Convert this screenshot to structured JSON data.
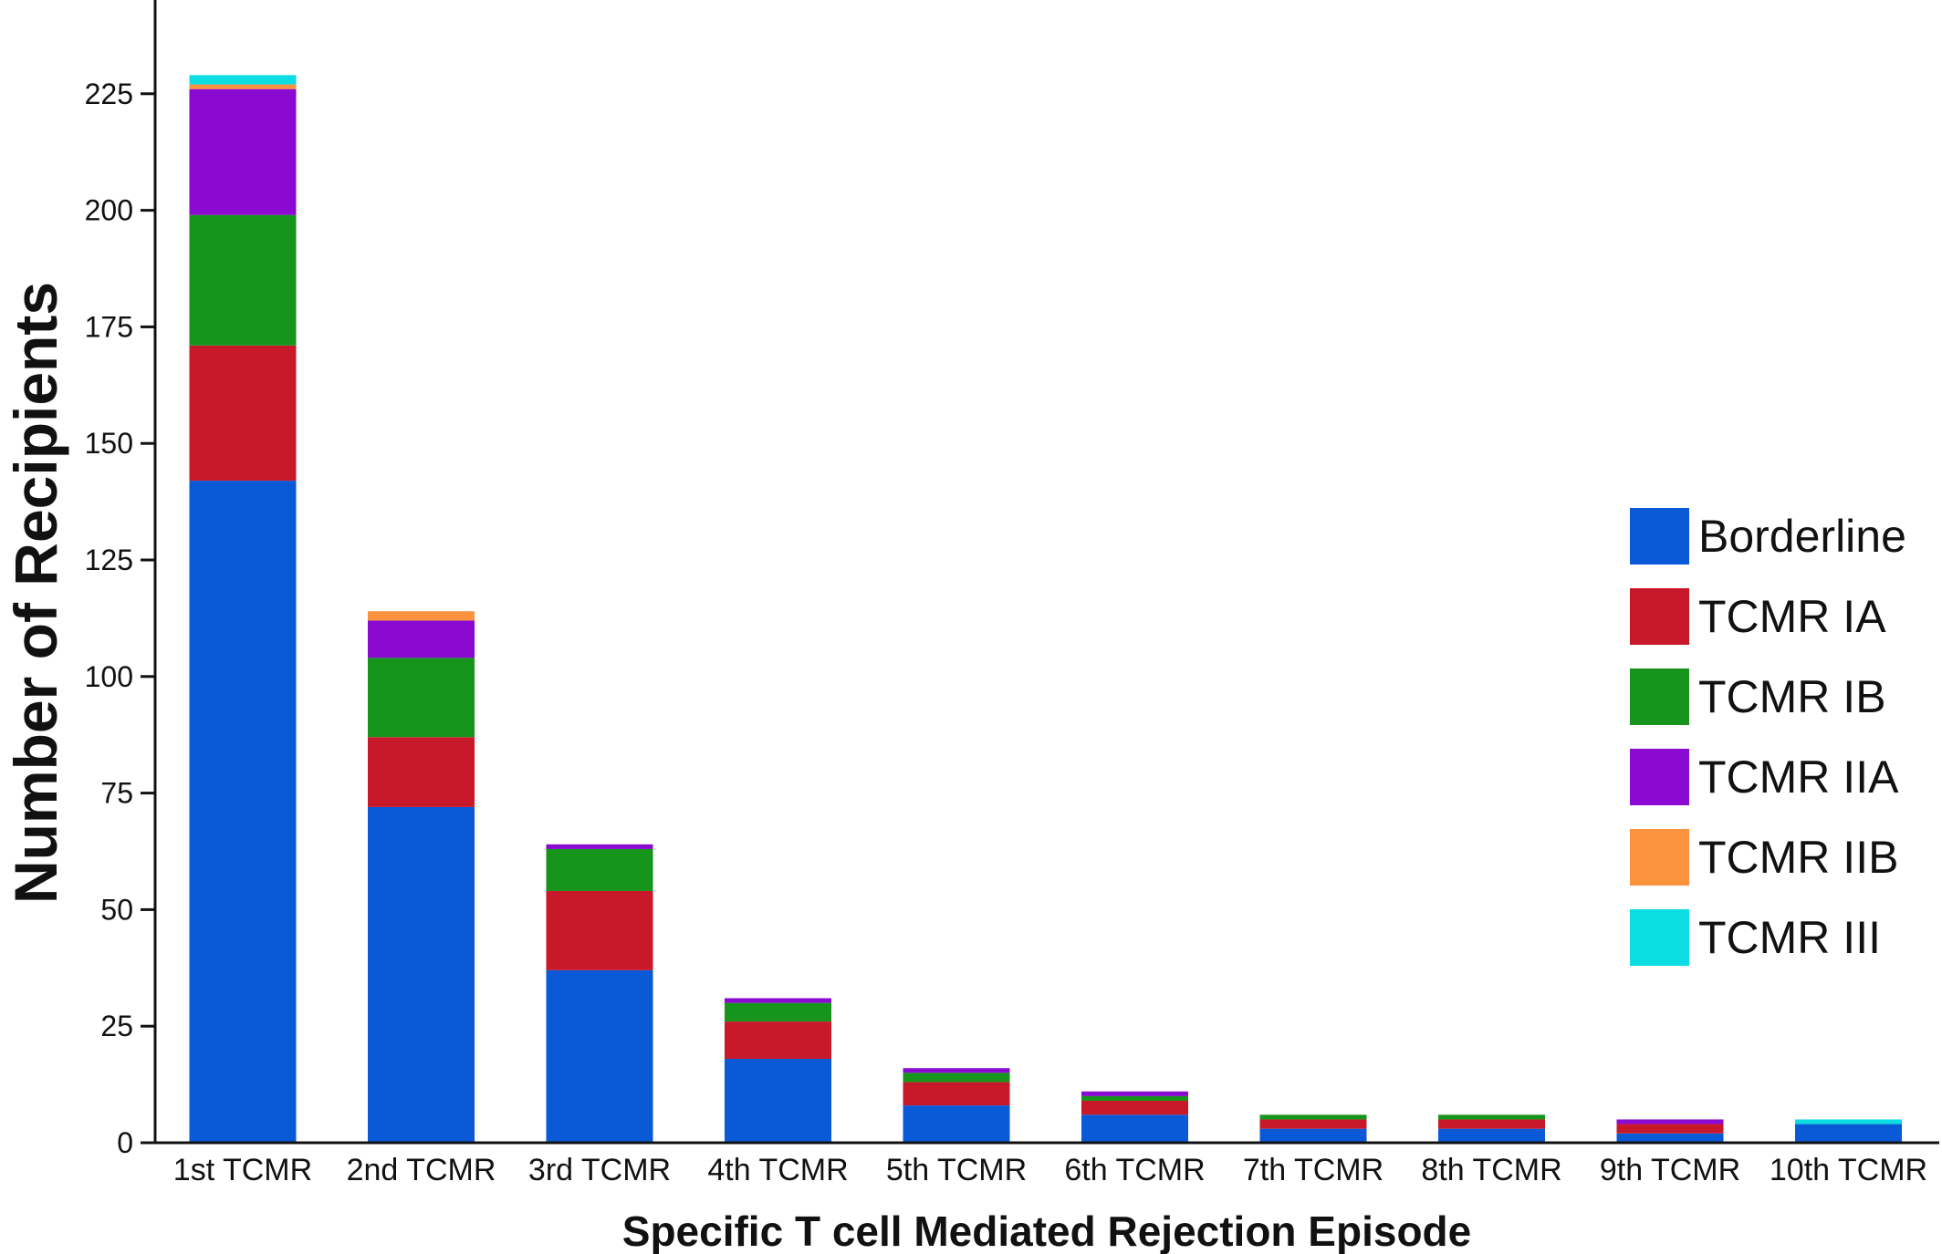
{
  "chart_data": {
    "type": "bar",
    "stacked": true,
    "categories": [
      "1st TCMR",
      "2nd TCMR",
      "3rd TCMR",
      "4th TCMR",
      "5th TCMR",
      "6th TCMR",
      "7th TCMR",
      "8th TCMR",
      "9th TCMR",
      "10th TCMR"
    ],
    "series": [
      {
        "name": "Borderline",
        "color": "#0a5ad7",
        "values": [
          142,
          72,
          37,
          18,
          8,
          6,
          3,
          3,
          2,
          4
        ]
      },
      {
        "name": "TCMR IA",
        "color": "#c8192b",
        "values": [
          29,
          15,
          17,
          8,
          5,
          3,
          2,
          2,
          2,
          0
        ]
      },
      {
        "name": "TCMR IB",
        "color": "#16941c",
        "values": [
          28,
          17,
          9,
          4,
          2,
          1,
          1,
          1,
          0,
          0
        ]
      },
      {
        "name": "TCMR IIA",
        "color": "#8b0ad1",
        "values": [
          27,
          8,
          1,
          1,
          1,
          1,
          0,
          0,
          1,
          0
        ]
      },
      {
        "name": "TCMR IIB",
        "color": "#fb923e",
        "values": [
          1,
          2,
          0,
          0,
          0,
          0,
          0,
          0,
          0,
          0
        ]
      },
      {
        "name": "TCMR III",
        "color": "#0bdde2",
        "values": [
          2,
          0,
          0,
          0,
          0,
          0,
          0,
          0,
          0,
          1
        ]
      }
    ],
    "title": "",
    "xlabel": "Specific T cell Mediated Rejection Episode",
    "ylabel": "Number of Recipients",
    "ylim": [
      0,
      245
    ],
    "yticks": [
      0,
      25,
      50,
      75,
      100,
      125,
      150,
      175,
      200,
      225
    ],
    "grid": false,
    "legend_position": "right"
  }
}
